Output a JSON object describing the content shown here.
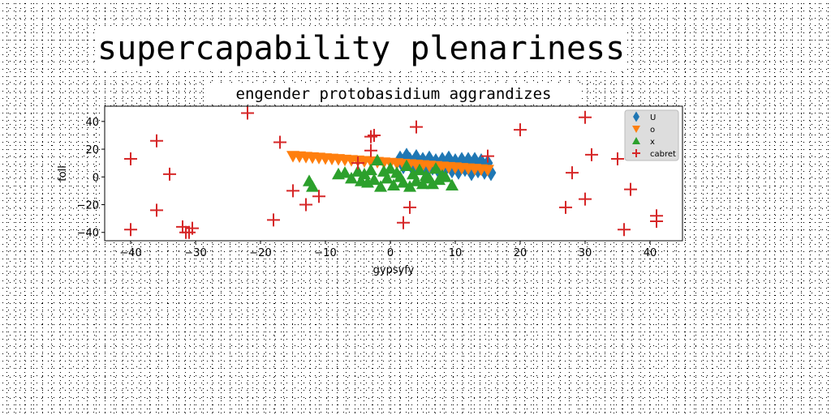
{
  "page": {
    "title": "supercapability plenariness"
  },
  "chart_data": {
    "type": "scatter",
    "title": "engender protobasidium aggrandizes",
    "xlabel": "gypsyfy",
    "ylabel": "foll",
    "xlim": [
      -44,
      45
    ],
    "ylim": [
      -46,
      51
    ],
    "xticks": [
      -40,
      -30,
      -20,
      -10,
      0,
      10,
      20,
      30,
      40
    ],
    "yticks": [
      -40,
      -20,
      0,
      20,
      40
    ],
    "xtick_labels": [
      "−40",
      "−30",
      "−20",
      "−10",
      "0",
      "10",
      "20",
      "30",
      "40"
    ],
    "ytick_labels": [
      "−40",
      "−20",
      "0",
      "20",
      "40"
    ],
    "grid": false,
    "legend_position": "top-right",
    "series": [
      {
        "name": "U",
        "marker": "diamond",
        "color": "#1f77b4",
        "x": [
          1.5,
          2,
          2.5,
          3,
          3.5,
          4,
          4.5,
          5,
          5.5,
          6,
          6.5,
          7,
          7.5,
          8,
          8.5,
          9,
          9.5,
          10,
          10.5,
          11,
          11.5,
          12,
          12.5,
          13,
          13.5,
          14,
          14.5,
          15,
          15.5
        ],
        "y": [
          13,
          8,
          15,
          12,
          6,
          14,
          9,
          12,
          5,
          13,
          7,
          11,
          4,
          12,
          6,
          13,
          5,
          11,
          4,
          12,
          6,
          12,
          3,
          12,
          5,
          11,
          4,
          10,
          3
        ]
      },
      {
        "name": "o",
        "marker": "triangle-down",
        "color": "#ff7f0e",
        "x": [
          -15,
          -14,
          -13,
          -12,
          -11,
          -10,
          -9,
          -8,
          -7,
          -6,
          -5,
          -4,
          -3,
          -2,
          -1,
          0,
          1,
          2,
          3,
          4,
          5,
          6,
          7,
          8,
          9,
          10,
          11,
          12,
          13,
          14,
          15
        ],
        "y": [
          15,
          14.7,
          14.3,
          14,
          13.7,
          13.3,
          13,
          12.7,
          12.3,
          12,
          11.7,
          11.3,
          11,
          10.7,
          10.3,
          10,
          9.7,
          9.3,
          9,
          8.7,
          8.3,
          8,
          7.7,
          7.3,
          7,
          6.7,
          6.3,
          6,
          5.7,
          5.3,
          5
        ]
      },
      {
        "name": "x",
        "marker": "triangle-up",
        "color": "#2ca02c",
        "x": [
          -12.5,
          -12,
          -8,
          -7,
          -6,
          -5,
          -4.5,
          -4,
          -3.5,
          -3,
          -2.5,
          -2,
          -1.5,
          -1,
          -0.5,
          0,
          0.5,
          1,
          1.5,
          2,
          2.5,
          3,
          3.5,
          4,
          4.5,
          5,
          5.5,
          6,
          6.5,
          7,
          7.5,
          8,
          8.5,
          9.5
        ],
        "y": [
          -3,
          -7,
          2,
          3,
          -1,
          4,
          -3,
          2,
          -4,
          5,
          -2,
          12,
          -7,
          4,
          -1,
          6,
          -6,
          3,
          0,
          -4,
          8,
          -7,
          2,
          -3,
          5,
          -5,
          1,
          -1,
          -5,
          6,
          -2,
          1,
          0,
          -6
        ]
      },
      {
        "name": "cabret",
        "marker": "plus",
        "color": "#d62728",
        "x": [
          -40,
          -40,
          -36,
          -36,
          -34,
          -32,
          -31.5,
          -31,
          -30.5,
          -22,
          -18,
          -17,
          -15,
          -13,
          -11,
          -5,
          -3,
          -3,
          -2.5,
          2,
          3,
          4,
          15,
          20,
          27,
          28,
          30,
          30,
          31,
          35,
          36,
          37,
          41,
          41
        ],
        "y": [
          13,
          -38,
          26,
          -24,
          2,
          -36,
          -40,
          -40,
          -37,
          46,
          -31,
          25,
          -10,
          -20,
          -14,
          10,
          19,
          29,
          30,
          -33,
          -22,
          36,
          15,
          34,
          -22,
          3,
          43,
          -16,
          16,
          13,
          -38,
          -9,
          -32,
          -28
        ]
      }
    ]
  }
}
